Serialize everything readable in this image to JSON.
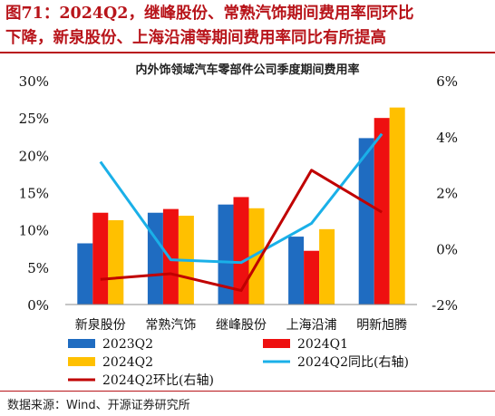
{
  "header": {
    "title_line_1": "图71：2024Q2，继峰股份、常熟汽饰期间费用率同环比",
    "title_line_2": "下降，新泉股份、上海沿浦等期间费用率同比有所提高"
  },
  "footer": {
    "source": "数据来源：Wind、开源证券研究所"
  },
  "colors": {
    "title": "#b8141a",
    "rule": "#b8141a"
  },
  "chart_data": {
    "type": "bar",
    "title": "内外饰领域汽车零部件公司季度期间费用率",
    "categories": [
      "新泉股份",
      "常熟汽饰",
      "继峰股份",
      "上海沿浦",
      "明新旭腾"
    ],
    "left_axis": {
      "ylim": [
        0,
        30
      ],
      "ticks": [
        0,
        5,
        10,
        15,
        20,
        25,
        30
      ],
      "tick_labels": [
        "0%",
        "5%",
        "10%",
        "15%",
        "20%",
        "25%",
        "30%"
      ]
    },
    "right_axis": {
      "ylim": [
        -2,
        6
      ],
      "ticks": [
        -2,
        0,
        2,
        4,
        6
      ],
      "tick_labels": [
        "-2%",
        "0%",
        "2%",
        "4%",
        "6%"
      ]
    },
    "series": [
      {
        "name": "2023Q2",
        "kind": "bar",
        "axis": "left",
        "color": "#1f6cc1",
        "values": [
          8.2,
          12.3,
          13.4,
          9.1,
          22.3
        ]
      },
      {
        "name": "2024Q1",
        "kind": "bar",
        "axis": "left",
        "color": "#ee1010",
        "values": [
          12.3,
          12.8,
          14.4,
          7.2,
          25.0
        ]
      },
      {
        "name": "2024Q2",
        "kind": "bar",
        "axis": "left",
        "color": "#ffc000",
        "values": [
          11.3,
          11.9,
          12.9,
          10.1,
          26.4
        ]
      },
      {
        "name": "2024Q2同比(右轴)",
        "kind": "line",
        "axis": "right",
        "color": "#1ab0e8",
        "values": [
          3.1,
          -0.4,
          -0.5,
          0.9,
          4.1
        ]
      },
      {
        "name": "2024Q2环比(右轴)",
        "kind": "line",
        "axis": "right",
        "color": "#c00000",
        "values": [
          -1.1,
          -0.9,
          -1.5,
          2.8,
          1.3
        ]
      }
    ],
    "legend": {
      "placement": "bottom"
    },
    "grid": false
  }
}
